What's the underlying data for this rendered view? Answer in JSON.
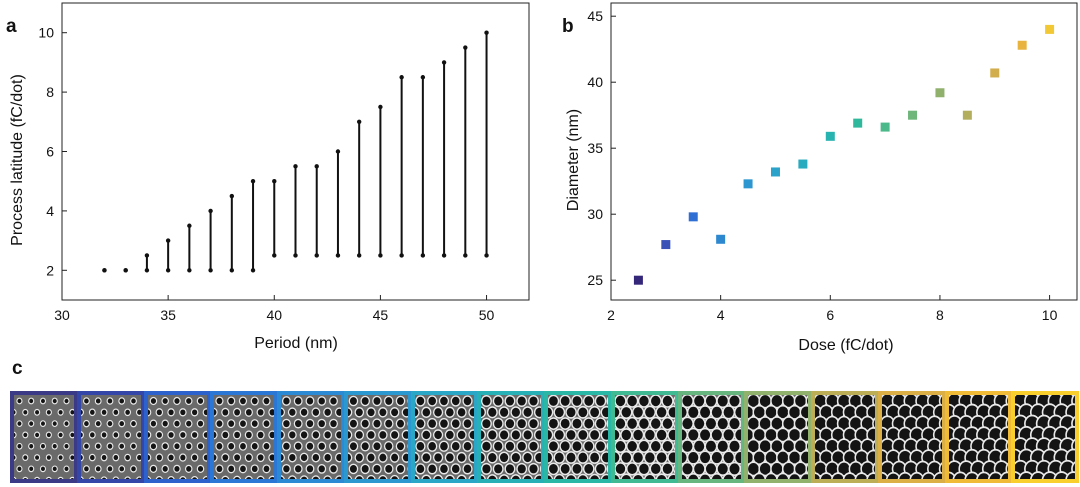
{
  "panels": {
    "a": "a",
    "b": "b",
    "c": "c"
  },
  "chart_data": [
    {
      "type": "range",
      "panel": "a",
      "xlabel": "Period (nm)",
      "ylabel": "Process latitude (fC/dot)",
      "xlim": [
        30,
        52
      ],
      "ylim": [
        1,
        11
      ],
      "xticks": [
        30,
        35,
        40,
        45,
        50
      ],
      "yticks": [
        2,
        4,
        6,
        8,
        10
      ],
      "x": [
        32,
        33,
        34,
        35,
        36,
        37,
        38,
        39,
        40,
        41,
        42,
        43,
        44,
        45,
        46,
        47,
        48,
        49,
        50
      ],
      "low": [
        2,
        2,
        2,
        2,
        2,
        2,
        2,
        2,
        2.5,
        2.5,
        2.5,
        2.5,
        2.5,
        2.5,
        2.5,
        2.5,
        2.5,
        2.5,
        2.5
      ],
      "high": [
        2,
        2,
        2.5,
        3,
        3.5,
        4,
        4.5,
        5,
        5,
        5.5,
        5.5,
        6,
        7,
        7.5,
        8.5,
        8.5,
        9,
        9.5,
        10
      ],
      "color": "#111111"
    },
    {
      "type": "scatter",
      "panel": "b",
      "xlabel": "Dose (fC/dot)",
      "ylabel": "Diameter (nm)",
      "xlim": [
        2,
        10.5
      ],
      "ylim": [
        23.5,
        46
      ],
      "xticks": [
        2,
        4,
        6,
        8,
        10
      ],
      "yticks": [
        25,
        30,
        35,
        40,
        45
      ],
      "x": [
        2.5,
        3,
        3.5,
        4,
        4.5,
        5,
        5.5,
        6,
        6.5,
        7,
        7.5,
        8,
        8.5,
        9,
        9.5,
        10
      ],
      "y": [
        25,
        27.7,
        29.8,
        28.1,
        32.3,
        33.2,
        33.8,
        35.9,
        36.9,
        36.6,
        37.5,
        39.2,
        37.5,
        40.7,
        42.8,
        44
      ],
      "colors": [
        "#34277a",
        "#3a52b8",
        "#2f6fd4",
        "#2d88d0",
        "#2d95cf",
        "#2aa2c9",
        "#28abbe",
        "#27b3af",
        "#2fb89c",
        "#4cb98a",
        "#6eb67a",
        "#8fb16c",
        "#b2ae5e",
        "#d2ad4e",
        "#e9b43e",
        "#f2c934"
      ]
    },
    {
      "type": "image-strip",
      "panel": "c",
      "frame_colors": [
        "#3a3a86",
        "#3446a8",
        "#2d62cc",
        "#2b77d6",
        "#2c8ad5",
        "#2b99d0",
        "#2aa6c6",
        "#28b0b7",
        "#2bb7a6",
        "#3fba92",
        "#68b67f",
        "#90b26c",
        "#bcae57",
        "#dcae46",
        "#f0bb37",
        "#f8cf2c"
      ]
    }
  ]
}
